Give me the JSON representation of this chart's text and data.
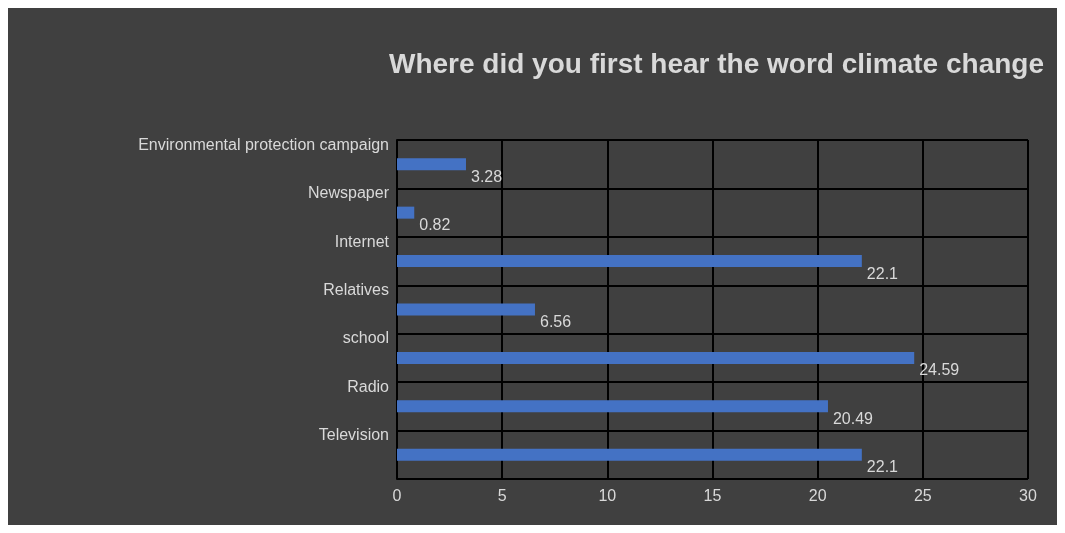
{
  "chart_data": {
    "type": "bar",
    "orientation": "horizontal",
    "title": "Where did you first hear the word climate change",
    "categories": [
      "Environmental protection campaign",
      "Newspaper",
      "Internet",
      "Relatives",
      "school",
      "Radio",
      "Television"
    ],
    "values": [
      3.28,
      0.82,
      22.1,
      6.56,
      24.59,
      20.49,
      22.1
    ],
    "color": "#4472c4",
    "xlim": [
      0,
      30
    ],
    "xticks": [
      0,
      5,
      10,
      15,
      20,
      25,
      30
    ],
    "grid": true,
    "data_labels": true
  }
}
